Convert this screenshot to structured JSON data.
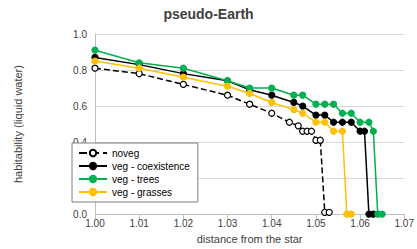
{
  "chart_data": {
    "type": "line",
    "title": "pseudo-Earth",
    "x_label": "distance from the star",
    "y_label": "habitability (liquid water)",
    "xlim": [
      1.0,
      1.07
    ],
    "xticks": [
      {
        "value": 1.0,
        "label": "1.00"
      },
      1.01,
      1.02,
      1.03,
      1.04,
      1.05,
      1.06,
      1.07
    ],
    "ylim": [
      0,
      1.0
    ],
    "yticks": [
      {
        "value": 0,
        "label": "0.0"
      },
      0.2,
      0.4,
      0.6,
      0.8,
      {
        "value": 1.0,
        "label": "1.0"
      }
    ],
    "grid": true,
    "legend": "lower left",
    "series": [
      {
        "name": "noveg",
        "color": "#000000",
        "marker": "circle_open",
        "line_style": "dashed",
        "x": [
          1.0,
          1.01,
          1.02,
          1.03,
          1.035,
          1.04,
          1.044,
          1.046,
          1.047,
          1.048,
          1.049,
          1.05,
          1.051,
          1.052,
          1.053
        ],
        "values": [
          0.81,
          0.78,
          0.72,
          0.66,
          0.61,
          0.56,
          0.51,
          0.49,
          0.46,
          0.46,
          0.46,
          0.41,
          0.41,
          0.01,
          0.01
        ]
      },
      {
        "name": "veg - coexistence",
        "color": "#000000",
        "marker": "circle",
        "line_style": "solid",
        "x": [
          1.0,
          1.01,
          1.02,
          1.03,
          1.035,
          1.04,
          1.045,
          1.047,
          1.05,
          1.052,
          1.054,
          1.056,
          1.058,
          1.06,
          1.061,
          1.062,
          1.063
        ],
        "values": [
          0.87,
          0.83,
          0.78,
          0.74,
          0.69,
          0.66,
          0.62,
          0.6,
          0.55,
          0.55,
          0.51,
          0.51,
          0.51,
          0.46,
          0.46,
          0.0,
          0.0
        ]
      },
      {
        "name": "veg - trees",
        "color": "#00b050",
        "marker": "circle",
        "line_style": "solid",
        "x": [
          1.0,
          1.01,
          1.02,
          1.03,
          1.035,
          1.04,
          1.045,
          1.047,
          1.05,
          1.052,
          1.054,
          1.056,
          1.058,
          1.06,
          1.062,
          1.063,
          1.064,
          1.065
        ],
        "values": [
          0.91,
          0.84,
          0.81,
          0.74,
          0.7,
          0.7,
          0.66,
          0.66,
          0.61,
          0.61,
          0.61,
          0.56,
          0.56,
          0.51,
          0.51,
          0.46,
          0.0,
          0.0
        ]
      },
      {
        "name": "veg - grasses",
        "color": "#ffc000",
        "marker": "circle",
        "line_style": "solid",
        "x": [
          1.0,
          1.01,
          1.02,
          1.03,
          1.035,
          1.04,
          1.045,
          1.047,
          1.05,
          1.052,
          1.054,
          1.056,
          1.057,
          1.058
        ],
        "values": [
          0.85,
          0.81,
          0.76,
          0.71,
          0.67,
          0.62,
          0.58,
          0.56,
          0.51,
          0.51,
          0.46,
          0.46,
          0.0,
          0.0
        ]
      }
    ]
  }
}
